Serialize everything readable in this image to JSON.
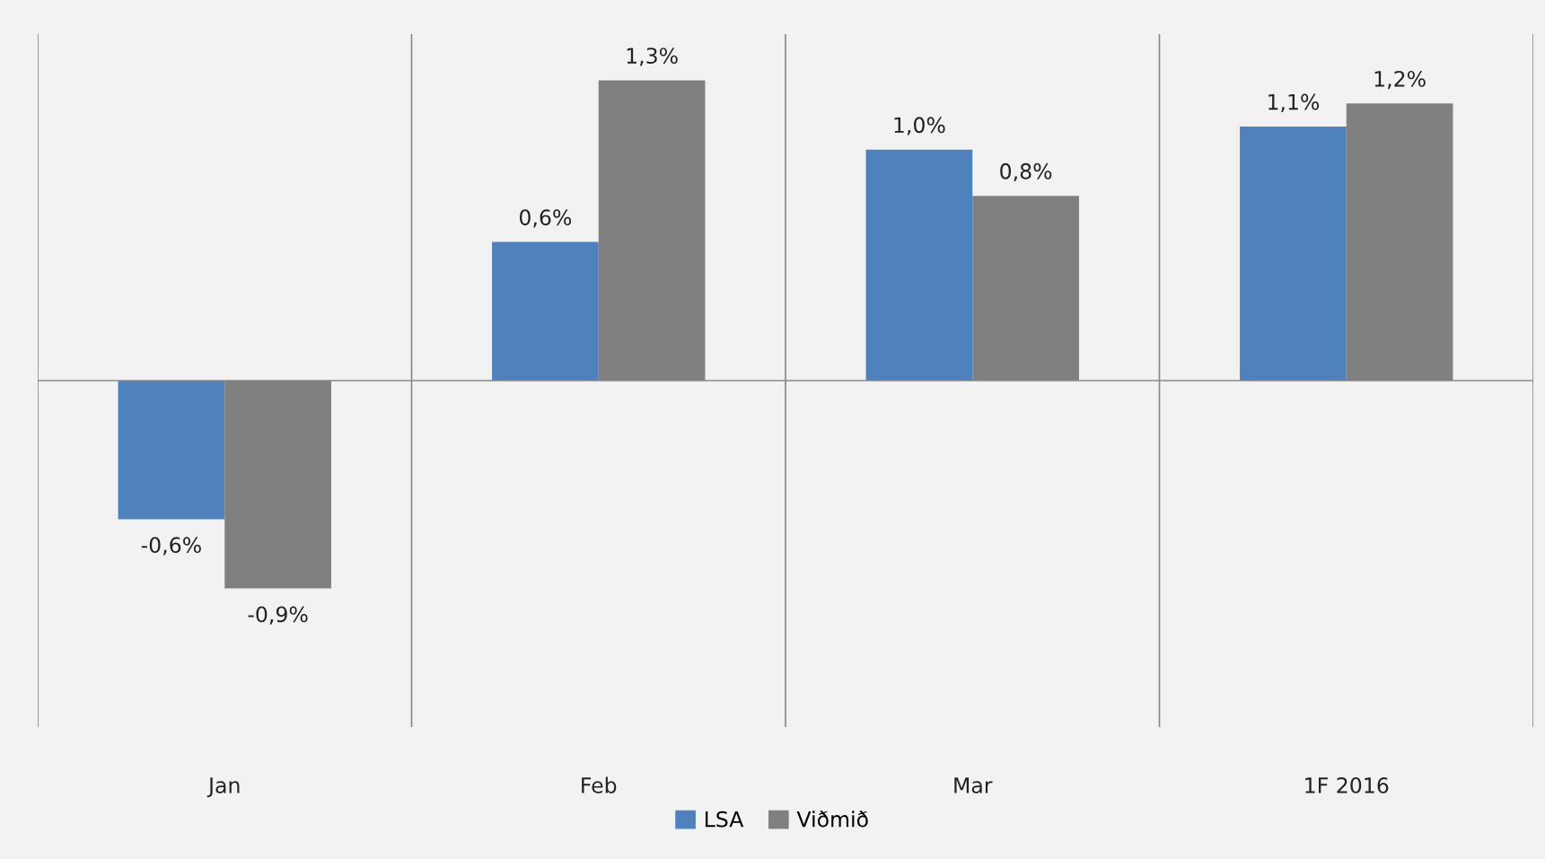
{
  "chart_data": {
    "type": "bar",
    "categories": [
      "Jan",
      "Feb",
      "Mar",
      "1F 2016"
    ],
    "series": [
      {
        "name": "LSA",
        "color": "#4f81bd",
        "values": [
          -0.6,
          0.6,
          1.0,
          1.1
        ],
        "value_labels": [
          "-0,6%",
          "0,6%",
          "1,0%",
          "1,1%"
        ]
      },
      {
        "name": "Viðmið",
        "color": "#808080",
        "values": [
          -0.9,
          1.3,
          0.8,
          1.2
        ],
        "value_labels": [
          "-0,9%",
          "1,3%",
          "0,8%",
          "1,2%"
        ]
      }
    ],
    "ylim": [
      -1.5,
      1.5
    ],
    "tick_labels": "x",
    "grid": "x",
    "legend": "bottom"
  }
}
